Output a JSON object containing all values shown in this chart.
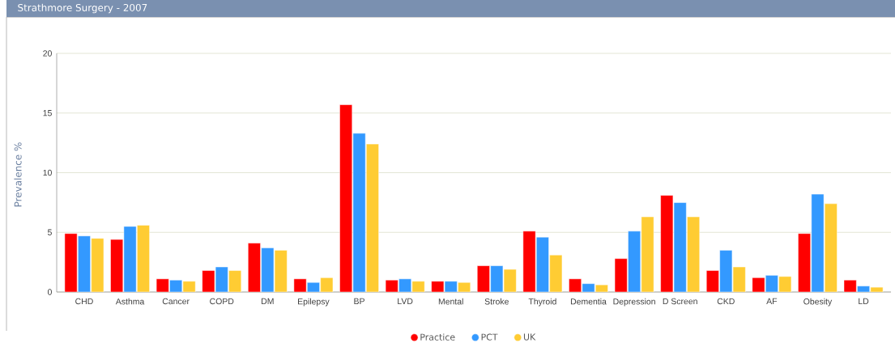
{
  "chart_data": {
    "type": "bar",
    "title": "Strathmore Surgery - 2007",
    "ylabel": "Prevalence %",
    "categories": [
      "CHD",
      "Asthma",
      "Cancer",
      "COPD",
      "DM",
      "Epilepsy",
      "BP",
      "LVD",
      "Mental",
      "Stroke",
      "Thyroid",
      "Dementia",
      "Depression",
      "D Screen",
      "CKD",
      "AF",
      "Obesity",
      "LD"
    ],
    "series": [
      {
        "name": "Practice",
        "color": "#ff0000",
        "values": [
          4.9,
          4.4,
          1.1,
          1.8,
          4.1,
          1.1,
          15.7,
          1.0,
          0.9,
          2.2,
          5.1,
          1.1,
          2.8,
          8.1,
          1.8,
          1.2,
          4.9,
          1.0
        ]
      },
      {
        "name": "PCT",
        "color": "#3399ff",
        "values": [
          4.7,
          5.5,
          1.0,
          2.1,
          3.7,
          0.8,
          13.3,
          1.1,
          0.9,
          2.2,
          4.6,
          0.7,
          5.1,
          7.5,
          3.5,
          1.4,
          8.2,
          0.5
        ]
      },
      {
        "name": "UK",
        "color": "#ffcc33",
        "values": [
          4.5,
          5.6,
          0.9,
          1.8,
          3.5,
          1.2,
          12.4,
          0.9,
          0.8,
          1.9,
          3.1,
          0.6,
          6.3,
          6.3,
          2.1,
          1.3,
          7.4,
          0.4
        ]
      }
    ],
    "ylim": [
      0,
      20
    ],
    "yticks": [
      0,
      5,
      10,
      15,
      20
    ],
    "grid": "y",
    "legend": "bottom"
  }
}
